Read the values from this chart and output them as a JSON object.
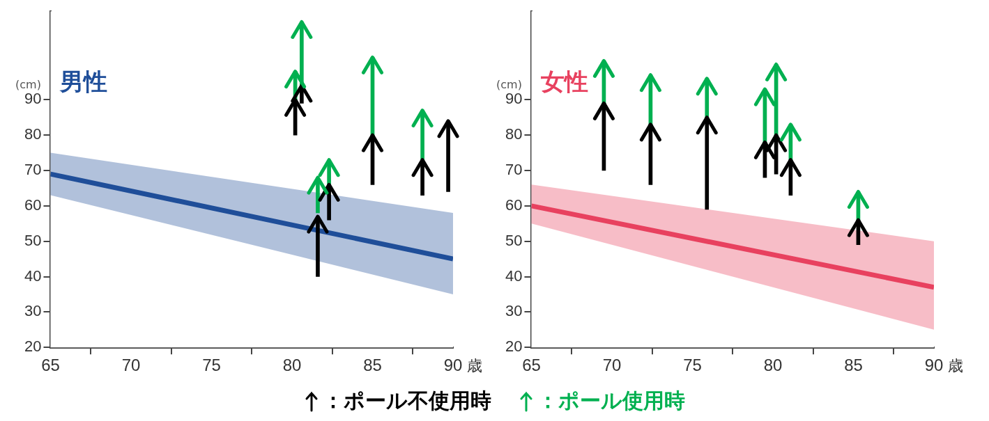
{
  "chart_data": [
    {
      "type": "bar",
      "title": "男性",
      "ylabel": "(cm)",
      "xlabel": "歳",
      "xlim": [
        65,
        90
      ],
      "xticks": [
        65,
        70,
        75,
        80,
        85,
        90
      ],
      "ylim": [
        20,
        115
      ],
      "yticks": [
        20,
        30,
        40,
        50,
        60,
        70,
        80,
        90
      ],
      "grid": false,
      "legend": "bottom",
      "series": [
        {
          "type": "line",
          "color": "#1f4e99",
          "x": [
            65,
            90
          ],
          "values": [
            69,
            45
          ],
          "lower": [
            63,
            35
          ],
          "upper": [
            75,
            58
          ]
        },
        {
          "name": "：ポール不使用時",
          "color": "#000000",
          "x": [
            80.2,
            80.6,
            81.6,
            82.3,
            85.0,
            88.1,
            89.7
          ],
          "base": [
            80,
            89,
            40,
            56,
            66,
            63,
            64
          ],
          "values": [
            10,
            5,
            17,
            10,
            14,
            10,
            20
          ]
        },
        {
          "name": "：ポール使用時",
          "color": "#00b050",
          "x": [
            80.2,
            80.6,
            81.6,
            82.3,
            85.0,
            88.1
          ],
          "base": [
            90,
            93,
            58,
            66,
            80,
            73
          ],
          "values": [
            8,
            19,
            10,
            7,
            22,
            14
          ]
        }
      ]
    },
    {
      "type": "bar",
      "title": "女性",
      "ylabel": "(cm)",
      "xlabel": "歳",
      "xlim": [
        65,
        90
      ],
      "xticks": [
        65,
        70,
        75,
        80,
        85,
        90
      ],
      "ylim": [
        20,
        115
      ],
      "yticks": [
        20,
        30,
        40,
        50,
        60,
        70,
        80,
        90
      ],
      "grid": false,
      "series": [
        {
          "type": "line",
          "color": "#e8415f",
          "x": [
            65,
            90
          ],
          "values": [
            60,
            37
          ],
          "lower": [
            55,
            25
          ],
          "upper": [
            66,
            50
          ]
        },
        {
          "color": "#000000",
          "x": [
            69.5,
            72.4,
            75.9,
            79.5,
            80.2,
            81.1,
            85.3
          ],
          "base": [
            70,
            66,
            59,
            68,
            69,
            63,
            49
          ],
          "values": [
            19,
            17,
            26,
            10,
            11,
            10,
            7
          ]
        },
        {
          "color": "#00b050",
          "x": [
            69.5,
            72.4,
            75.9,
            79.5,
            80.2,
            81.1,
            85.3
          ],
          "base": [
            89,
            83,
            85,
            78,
            80,
            73,
            56
          ],
          "values": [
            12,
            14,
            11,
            15,
            20,
            10,
            8
          ]
        }
      ]
    }
  ]
}
